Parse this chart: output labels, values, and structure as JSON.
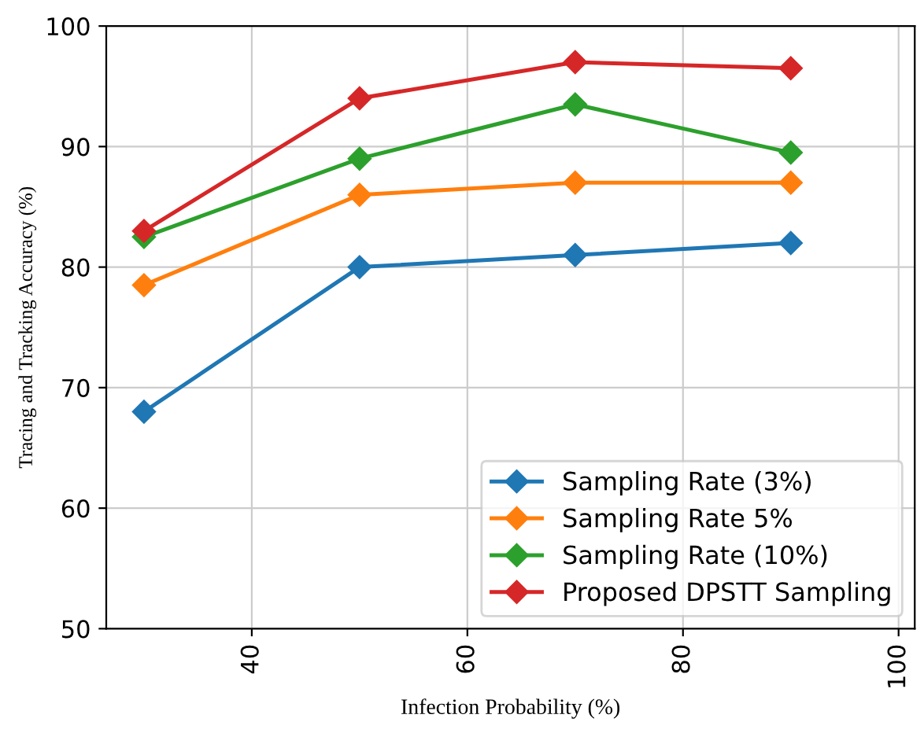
{
  "chart_data": {
    "type": "line",
    "xlabel": "Infection Probability (%)",
    "ylabel": "Tracing and Tracking Accuracy (%)",
    "x": [
      30,
      50,
      70,
      90
    ],
    "series": [
      {
        "name": "Sampling Rate (3%)",
        "color": "#1f77b4",
        "values": [
          68,
          80,
          81,
          82
        ]
      },
      {
        "name": "Sampling Rate 5%",
        "color": "#ff7f0e",
        "values": [
          78.5,
          86,
          87,
          87
        ]
      },
      {
        "name": "Sampling Rate (10%)",
        "color": "#2ca02c",
        "values": [
          82.5,
          89,
          93.5,
          89.5
        ]
      },
      {
        "name": "Proposed DPSTT Sampling",
        "color": "#d62728",
        "values": [
          83,
          94,
          97,
          96.5
        ]
      }
    ],
    "xlim": [
      26.5,
      101.5
    ],
    "xticks": [
      40,
      60,
      80,
      100
    ],
    "ylim": [
      50,
      100
    ],
    "yticks": [
      50,
      60,
      70,
      80,
      90,
      100
    ],
    "grid": true,
    "legend": "bottom right",
    "marker": "diamond",
    "line_style": "solid"
  }
}
